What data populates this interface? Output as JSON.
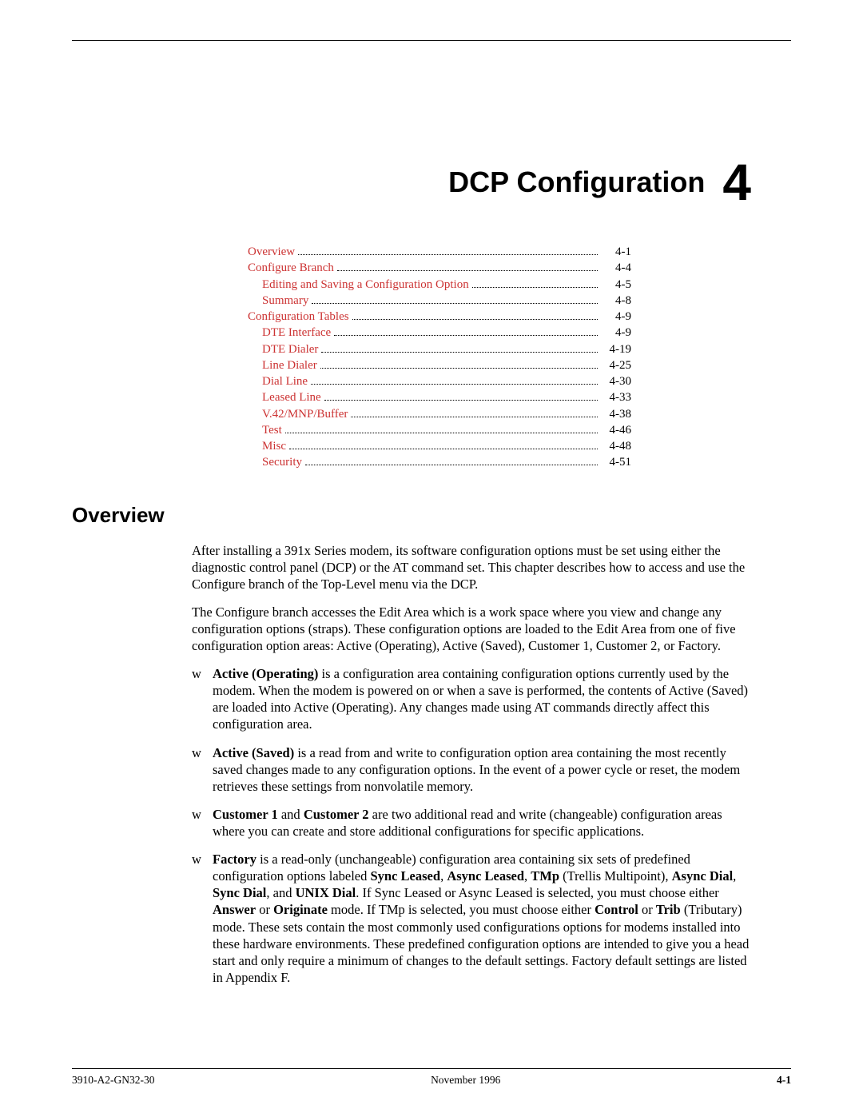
{
  "chapter": {
    "title": "DCP Configuration",
    "number": "4"
  },
  "toc": {
    "link_color": "#cc3333",
    "items": [
      {
        "label": "Overview",
        "page": "4-1",
        "indent": 0
      },
      {
        "label": "Configure Branch",
        "page": "4-4",
        "indent": 0
      },
      {
        "label": "Editing and Saving a Configuration Option",
        "page": "4-5",
        "indent": 1
      },
      {
        "label": "Summary",
        "page": "4-8",
        "indent": 1
      },
      {
        "label": "Configuration Tables",
        "page": "4-9",
        "indent": 0
      },
      {
        "label": "DTE Interface",
        "page": "4-9",
        "indent": 1
      },
      {
        "label": "DTE Dialer",
        "page": "4-19",
        "indent": 1
      },
      {
        "label": "Line Dialer",
        "page": "4-25",
        "indent": 1
      },
      {
        "label": "Dial Line",
        "page": "4-30",
        "indent": 1
      },
      {
        "label": "Leased Line",
        "page": "4-33",
        "indent": 1
      },
      {
        "label": "V.42/MNP/Buffer",
        "page": "4-38",
        "indent": 1
      },
      {
        "label": "Test",
        "page": "4-46",
        "indent": 1
      },
      {
        "label": "Misc",
        "page": "4-48",
        "indent": 1
      },
      {
        "label": "Security",
        "page": "4-51",
        "indent": 1
      }
    ]
  },
  "section": {
    "heading": "Overview",
    "para1": "After installing a 391x Series modem, its software configuration options must be set using either the diagnostic control panel (DCP) or the AT command set. This chapter describes how to access and use the Configure branch of the Top-Level menu via the DCP.",
    "para2": "The Configure branch accesses the Edit Area which is a work space where you view and change any configuration options (straps). These configuration options are loaded to the Edit Area from one of five configuration option areas: Active (Operating), Active (Saved), Customer 1, Customer 2, or Factory."
  },
  "bullets": {
    "marker": "w",
    "items": [
      {
        "lead": "Active (Operating)",
        "rest": " is a configuration area containing configuration options currently used by the modem. When the modem is powered on or when a save is performed, the contents of Active (Saved) are loaded into Active (Operating). Any changes made using AT commands directly affect this configuration area."
      },
      {
        "lead": "Active (Saved)",
        "rest": " is a read from and write to configuration option area containing the most recently saved changes made to any configuration options. In the event of a power cycle or reset, the modem retrieves these settings from nonvolatile memory."
      }
    ],
    "item_cust": {
      "lead1": "Customer 1",
      "mid": " and ",
      "lead2": "Customer 2",
      "rest": " are two additional read and write (changeable) configuration areas where you can create and store additional configurations for specific applications."
    },
    "item_factory": {
      "lead": "Factory",
      "t1": " is a read-only (unchangeable) configuration area containing six sets of predefined configuration options labeled ",
      "b1": "Sync Leased",
      "c1": ", ",
      "b2": "Async Leased",
      "c2": ", ",
      "b3": "TMp",
      "t2": " (Trellis Multipoint), ",
      "b4": "Async Dial",
      "c3": ", ",
      "b5": "Sync Dial",
      "t3": ", and ",
      "b6": "UNIX Dial",
      "t4": ". If Sync Leased or Async Leased is selected, you must choose either ",
      "b7": "Answer",
      "t5": " or ",
      "b8": "Originate",
      "t6": " mode. If TMp is selected, you must choose either ",
      "b9": "Control",
      "t7": " or ",
      "b10": "Trib",
      "t8": " (Tributary) mode. These sets contain the most commonly used configurations options for modems installed into these hardware environments. These predefined configuration options are intended to give you a head start and only require a minimum of changes to the default settings. Factory default settings are listed in Appendix F."
    }
  },
  "footer": {
    "left": "3910-A2-GN32-30",
    "center": "November 1996",
    "right": "4-1"
  },
  "colors": {
    "text": "#000000",
    "link": "#cc3333",
    "background": "#ffffff"
  },
  "fonts": {
    "body": "Times New Roman",
    "heading": "Arial",
    "body_size_pt": 12,
    "heading_size_pt": 20,
    "chapter_title_pt": 27,
    "chapter_number_pt": 48
  }
}
